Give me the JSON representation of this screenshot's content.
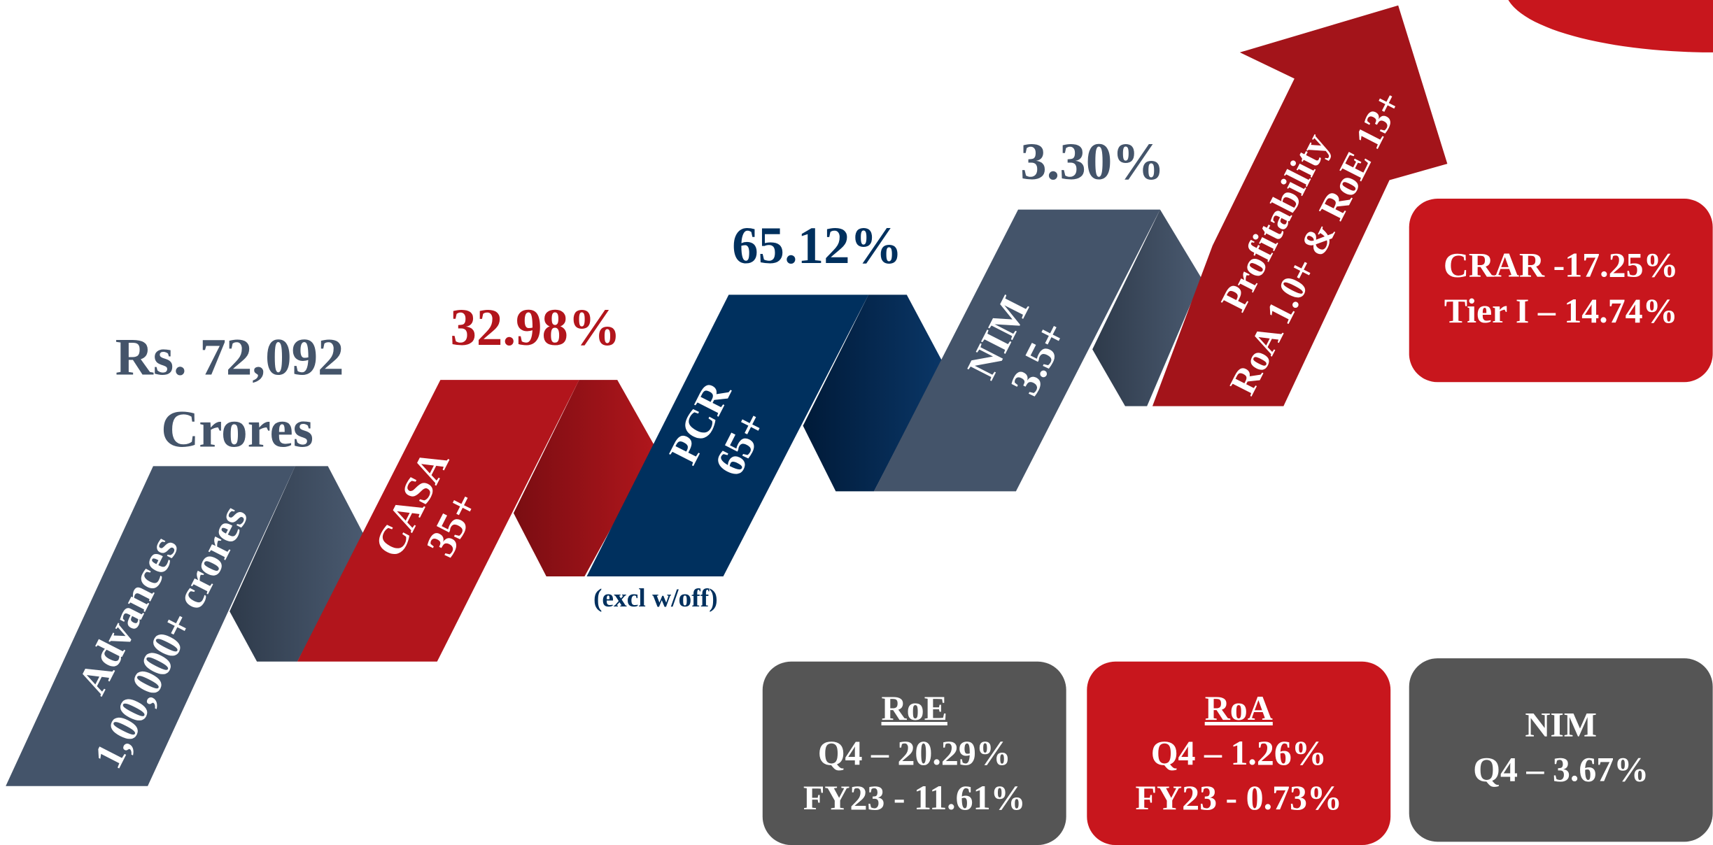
{
  "headline": {
    "advances_value": "Rs. 72,092",
    "advances_unit": "Crores",
    "casa": "32.98%",
    "pcr": "65.12%",
    "nim": "3.30%"
  },
  "steps": [
    {
      "title": "Advances",
      "target": "1,00,000+ crores"
    },
    {
      "title": "CASA",
      "target": "35+"
    },
    {
      "title": "PCR",
      "target": "65+"
    },
    {
      "title": "NIM",
      "target": "3.5+"
    },
    {
      "title": "Profitability",
      "target": "RoA 1.0+ & RoE 13+"
    }
  ],
  "note": "(excl w/off)",
  "boxes": {
    "crar": {
      "lines": [
        "CRAR -17.25%",
        "Tier I – 14.74%"
      ]
    },
    "roe": {
      "title": "RoE",
      "lines": [
        "Q4 – 20.29%",
        "FY23 - 11.61%"
      ]
    },
    "roa": {
      "title": "RoA",
      "lines": [
        "Q4 – 1.26%",
        "FY23 - 0.73%"
      ]
    },
    "nim": {
      "title": "NIM",
      "lines": [
        "Q4 – 3.67%"
      ]
    }
  }
}
